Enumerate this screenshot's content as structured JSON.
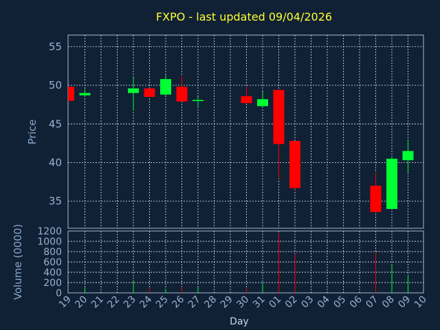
{
  "chart_data": {
    "type": "candlestick",
    "title": "FXPO - last updated 09/04/2026",
    "ylabel": "Price",
    "volume_label": "Volume (0000)",
    "xlabel": "Day",
    "price_ylim": [
      31.5,
      56.5
    ],
    "price_ticks": [
      35,
      40,
      45,
      50,
      55
    ],
    "volume_ylim": [
      0,
      1200
    ],
    "volume_ticks": [
      0,
      200,
      400,
      600,
      800,
      1000,
      1200
    ],
    "x_tick_labels": [
      "19",
      "20",
      "21",
      "22",
      "23",
      "24",
      "25",
      "26",
      "27",
      "28",
      "29",
      "30",
      "31",
      "01",
      "02",
      "03",
      "04",
      "05",
      "06",
      "07",
      "08",
      "09",
      "10"
    ],
    "grid": true,
    "up_color": "#00ff33",
    "down_color": "#ff0000",
    "candles": [
      {
        "day": "19",
        "open": 49.8,
        "high": 49.8,
        "low": 48.0,
        "close": 48.0,
        "volume": 0
      },
      {
        "day": "20",
        "open": 48.7,
        "high": 49.5,
        "low": 48.5,
        "close": 49.0,
        "volume": 100
      },
      {
        "day": "23",
        "open": 49.0,
        "high": 51.0,
        "low": 46.7,
        "close": 49.6,
        "volume": 220
      },
      {
        "day": "24",
        "open": 49.6,
        "high": 49.6,
        "low": 48.5,
        "close": 48.5,
        "volume": 90
      },
      {
        "day": "25",
        "open": 48.8,
        "high": 51.3,
        "low": 48.6,
        "close": 50.8,
        "volume": 80
      },
      {
        "day": "26",
        "open": 49.8,
        "high": 51.2,
        "low": 47.9,
        "close": 47.9,
        "volume": 120
      },
      {
        "day": "27",
        "open": 48.0,
        "high": 48.5,
        "low": 47.2,
        "close": 48.1,
        "volume": 110
      },
      {
        "day": "30",
        "open": 48.6,
        "high": 49.8,
        "low": 47.6,
        "close": 47.7,
        "volume": 90
      },
      {
        "day": "31",
        "open": 47.3,
        "high": 49.2,
        "low": 47.1,
        "close": 48.2,
        "volume": 200
      },
      {
        "day": "01",
        "open": 49.4,
        "high": 49.4,
        "low": 37.9,
        "close": 42.4,
        "volume": 1150
      },
      {
        "day": "02",
        "open": 42.8,
        "high": 42.8,
        "low": 36.5,
        "close": 36.7,
        "volume": 760
      },
      {
        "day": "07",
        "open": 37.0,
        "high": 38.7,
        "low": 33.6,
        "close": 33.6,
        "volume": 780
      },
      {
        "day": "08",
        "open": 34.0,
        "high": 40.8,
        "low": 34.0,
        "close": 40.5,
        "volume": 540
      },
      {
        "day": "09",
        "open": 40.3,
        "high": 43.0,
        "low": 38.7,
        "close": 41.5,
        "volume": 350
      }
    ]
  }
}
